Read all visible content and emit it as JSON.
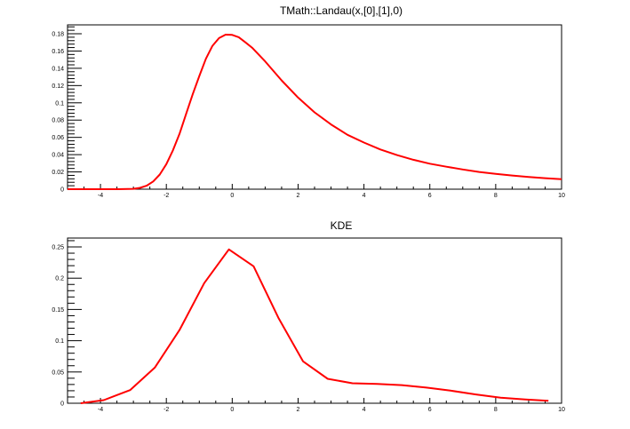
{
  "chart_data": [
    {
      "type": "line",
      "title": "TMath::Landau(x,[0],[1],0)",
      "xlabel": "",
      "ylabel": "",
      "xlim": [
        -5,
        10
      ],
      "ylim": [
        0,
        0.18
      ],
      "x_ticks": [
        -4,
        -2,
        0,
        2,
        4,
        6,
        8,
        10
      ],
      "y_ticks": [
        0,
        0.02,
        0.04,
        0.06,
        0.08,
        0.1,
        0.12,
        0.14,
        0.16,
        0.18
      ],
      "x_tick_labels": [
        "-4",
        "-2",
        "0",
        "2",
        "4",
        "6",
        "8",
        "10"
      ],
      "y_tick_labels": [
        "0",
        "0.02",
        "0.04",
        "0.06",
        "0.08",
        "0.1",
        "0.12",
        "0.14",
        "0.16",
        "0.18"
      ],
      "grid": false,
      "line_color": "#ff0000",
      "series": [
        {
          "x": [
            -5.0,
            -4.0,
            -3.5,
            -3.0,
            -2.8,
            -2.6,
            -2.4,
            -2.2,
            -2.0,
            -1.8,
            -1.6,
            -1.4,
            -1.2,
            -1.0,
            -0.8,
            -0.6,
            -0.4,
            -0.2,
            0.0,
            0.2,
            0.4,
            0.6,
            0.8,
            1.0,
            1.5,
            2.0,
            2.5,
            3.0,
            3.5,
            4.0,
            4.5,
            5.0,
            5.5,
            6.0,
            6.5,
            7.0,
            7.5,
            8.0,
            8.5,
            9.0,
            9.5,
            10.0
          ],
          "y": [
            0.0,
            0.0,
            0.0,
            0.0004,
            0.0015,
            0.004,
            0.009,
            0.017,
            0.029,
            0.045,
            0.064,
            0.087,
            0.11,
            0.131,
            0.151,
            0.166,
            0.175,
            0.179,
            0.1787,
            0.176,
            0.17,
            0.164,
            0.156,
            0.148,
            0.126,
            0.106,
            0.089,
            0.075,
            0.063,
            0.054,
            0.046,
            0.0395,
            0.034,
            0.0295,
            0.026,
            0.0228,
            0.02,
            0.0178,
            0.0158,
            0.0142,
            0.0128,
            0.0115
          ]
        }
      ]
    },
    {
      "type": "line",
      "title": "KDE",
      "xlabel": "",
      "ylabel": "",
      "xlim": [
        -5,
        10
      ],
      "ylim": [
        0,
        0.25
      ],
      "x_ticks": [
        -4,
        -2,
        0,
        2,
        4,
        6,
        8,
        10
      ],
      "y_ticks": [
        0,
        0.05,
        0.1,
        0.15,
        0.2,
        0.25
      ],
      "x_tick_labels": [
        "-4",
        "-2",
        "0",
        "2",
        "4",
        "6",
        "8",
        "10"
      ],
      "y_tick_labels": [
        "0",
        "0.05",
        "0.1",
        "0.15",
        "0.2",
        "0.25"
      ],
      "grid": false,
      "line_color": "#ff0000",
      "series": [
        {
          "x": [
            -4.6,
            -3.9,
            -3.1,
            -2.35,
            -1.6,
            -0.85,
            -0.1,
            0.65,
            1.4,
            2.15,
            2.9,
            3.65,
            4.4,
            5.15,
            5.9,
            6.65,
            7.4,
            8.15,
            8.9,
            9.6
          ],
          "y": [
            0.0,
            0.005,
            0.021,
            0.057,
            0.117,
            0.192,
            0.246,
            0.219,
            0.137,
            0.067,
            0.039,
            0.032,
            0.031,
            0.029,
            0.025,
            0.02,
            0.014,
            0.009,
            0.006,
            0.004
          ]
        }
      ]
    }
  ]
}
